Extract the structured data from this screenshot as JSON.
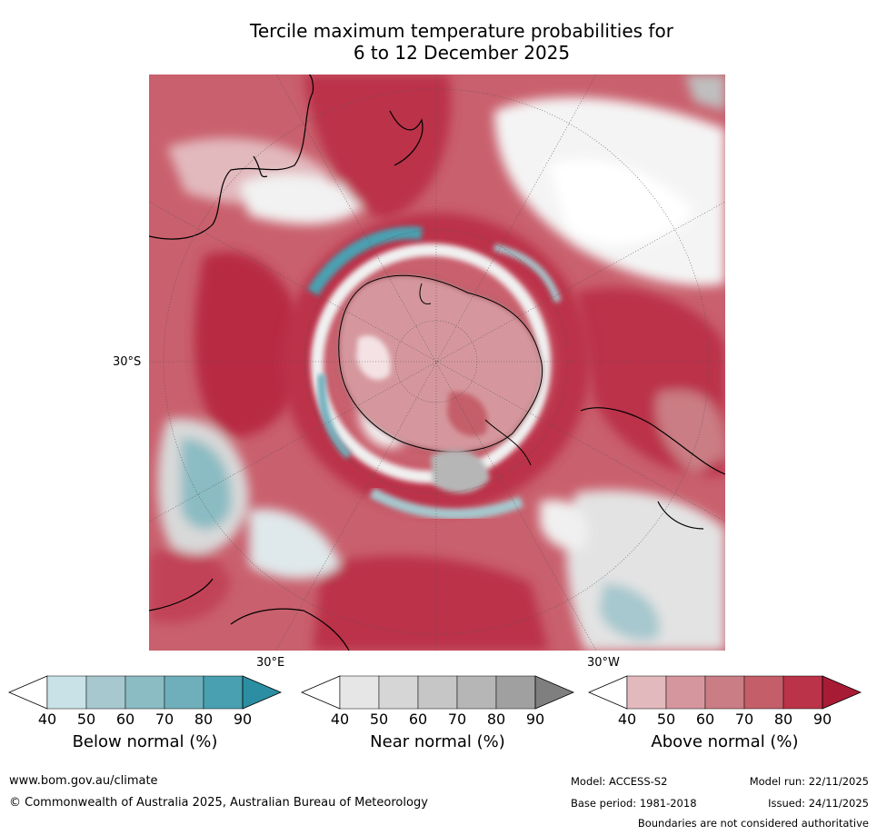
{
  "title": {
    "line1": "Tercile maximum temperature probabilities for",
    "line2": "6 to 12 December 2025"
  },
  "map": {
    "projection": "polar stereographic (south pole)",
    "labels": {
      "lat_30s": "30°S",
      "lon_30e": "30°E",
      "lon_30w": "30°W"
    }
  },
  "colorbars": [
    {
      "name": "below",
      "label": "Below normal (%)",
      "ticks": [
        "40",
        "50",
        "60",
        "70",
        "80",
        "90"
      ],
      "colors": [
        "#ffffff",
        "#c9e2e8",
        "#a6c8ce",
        "#8bbcc3",
        "#6fafbb",
        "#48a0b1",
        "#2b8ea2"
      ]
    },
    {
      "name": "near",
      "label": "Near normal (%)",
      "ticks": [
        "40",
        "50",
        "60",
        "70",
        "80",
        "90"
      ],
      "colors": [
        "#ffffff",
        "#e6e6e6",
        "#d6d6d6",
        "#c6c6c6",
        "#b6b6b6",
        "#a0a0a0",
        "#7f7f7f"
      ]
    },
    {
      "name": "above",
      "label": "Above normal (%)",
      "ticks": [
        "40",
        "50",
        "60",
        "70",
        "80",
        "90"
      ],
      "colors": [
        "#ffffff",
        "#e2b9bd",
        "#d5979d",
        "#ca7d84",
        "#c45e69",
        "#bb3349",
        "#a81b35"
      ]
    }
  ],
  "footer": {
    "website": "www.bom.gov.au/climate",
    "copyright": "© Commonwealth of Australia 2025, Australian Bureau of Meteorology",
    "model": "Model: ACCESS-S2",
    "base_period": "Base period: 1981-2018",
    "model_run": "Model run: 22/11/2025",
    "issued": "Issued: 24/11/2025",
    "disclaimer": "Boundaries are not considered authoritative"
  }
}
